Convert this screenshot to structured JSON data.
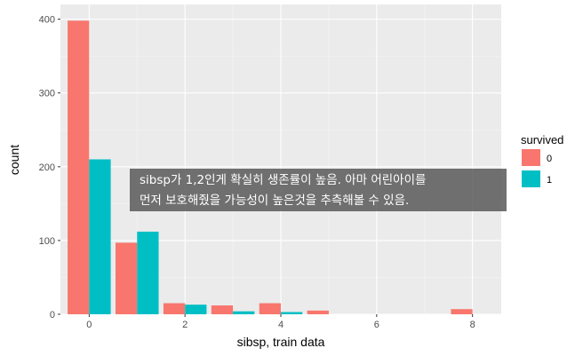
{
  "chart_data": {
    "type": "bar",
    "xlabel": "sibsp, train data",
    "ylabel": "count",
    "x_ticks": [
      0,
      2,
      4,
      6,
      8
    ],
    "y_ticks": [
      0,
      100,
      200,
      300,
      400
    ],
    "xlim": [
      -0.6,
      8.6
    ],
    "ylim": [
      0,
      420
    ],
    "grid": true,
    "legend": {
      "title": "survived",
      "placement": "right",
      "entries": [
        {
          "label": "0",
          "color": "#F8766D"
        },
        {
          "label": "1",
          "color": "#00BFC4"
        }
      ]
    },
    "series": [
      {
        "name": "0",
        "color": "#F8766D",
        "points": [
          {
            "x": 0,
            "y": 398
          },
          {
            "x": 1,
            "y": 97
          },
          {
            "x": 2,
            "y": 15
          },
          {
            "x": 3,
            "y": 12
          },
          {
            "x": 4,
            "y": 15
          },
          {
            "x": 5,
            "y": 5
          },
          {
            "x": 8,
            "y": 7
          }
        ]
      },
      {
        "name": "1",
        "color": "#00BFC4",
        "points": [
          {
            "x": 0,
            "y": 210
          },
          {
            "x": 1,
            "y": 112
          },
          {
            "x": 2,
            "y": 13
          },
          {
            "x": 3,
            "y": 4
          },
          {
            "x": 4,
            "y": 3
          }
        ]
      }
    ],
    "annotation": {
      "lines": [
        "sibsp가 1,2인게 확실히 생존률이 높음. 아마 어린아이를",
        "먼저 보호해줬을 가능성이 높은것을 추측해볼 수 있음."
      ]
    }
  }
}
